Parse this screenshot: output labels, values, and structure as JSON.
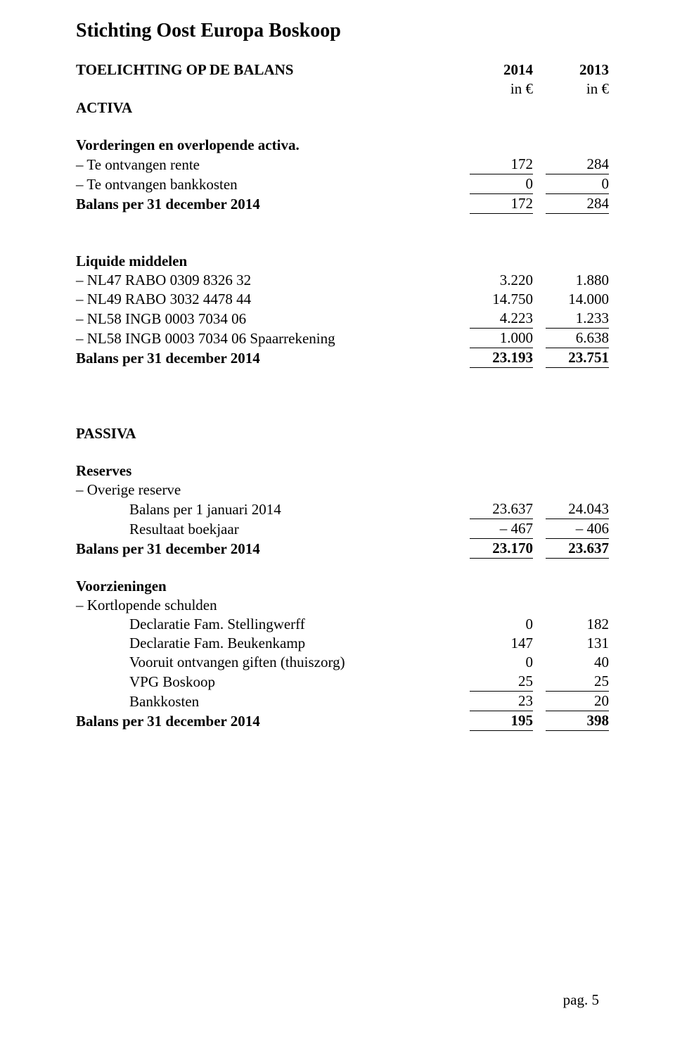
{
  "org_title": "Stichting Oost Europa Boskoop",
  "header": {
    "section_title": "TOELICHTING OP DE BALANS",
    "year_a": "2014",
    "year_b": "2013",
    "unit_a": "in €",
    "unit_b": "in €",
    "activa_label": "ACTIVA"
  },
  "vorderingen": {
    "title": "Vorderingen en overlopende activa.",
    "rows": [
      {
        "label": "– Te ontvangen rente",
        "a": "172",
        "b": "284"
      },
      {
        "label": "– Te ontvangen bankkosten",
        "a": "0",
        "b": "0"
      }
    ],
    "total": {
      "label": "Balans per 31 december 2014",
      "a": "172",
      "b": "284"
    }
  },
  "liquide": {
    "title": "Liquide middelen",
    "rows": [
      {
        "label": "– NL47 RABO 0309 8326 32",
        "a": "3.220",
        "b": "1.880"
      },
      {
        "label": "– NL49 RABO 3032 4478 44",
        "a": "14.750",
        "b": "14.000"
      },
      {
        "label": "– NL58 INGB 0003 7034 06",
        "a": "4.223",
        "b": "1.233"
      },
      {
        "label": "– NL58 INGB 0003 7034 06 Spaarrekening",
        "a": "1.000",
        "b": "6.638"
      }
    ],
    "total": {
      "label": "Balans per 31 december 2014",
      "a": "23.193",
      "b": "23.751"
    }
  },
  "passiva_label": "PASSIVA",
  "reserves": {
    "title": "Reserves",
    "sub": "– Overige reserve",
    "rows": [
      {
        "label": "Balans per 1 januari 2014",
        "a": "23.637",
        "b": "24.043"
      },
      {
        "label": "Resultaat boekjaar",
        "a": "– 467",
        "b": "– 406"
      }
    ],
    "total": {
      "label": "Balans per 31 december 2014",
      "a": "23.170",
      "b": "23.637"
    }
  },
  "voorz": {
    "title": "Voorzieningen",
    "sub": "– Kortlopende schulden",
    "rows": [
      {
        "label": "Declaratie Fam. Stellingwerff",
        "a": "0",
        "b": "182"
      },
      {
        "label": "Declaratie Fam. Beukenkamp",
        "a": "147",
        "b": "131"
      },
      {
        "label": "Vooruit ontvangen giften (thuiszorg)",
        "a": "0",
        "b": "40"
      },
      {
        "label": "VPG Boskoop",
        "a": "25",
        "b": "25"
      },
      {
        "label": "Bankkosten",
        "a": "23",
        "b": "20"
      }
    ],
    "total": {
      "label": "Balans per 31 december 2014",
      "a": "195",
      "b": "398"
    }
  },
  "page_num": "pag. 5"
}
